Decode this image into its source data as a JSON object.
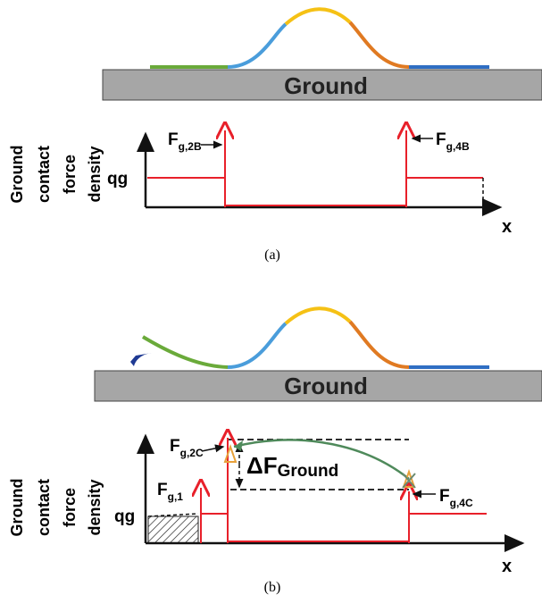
{
  "panels": [
    {
      "ground": "Ground",
      "ylabel": [
        "Ground",
        "contact",
        "force",
        "density"
      ],
      "q": "qg",
      "x": "x",
      "caption": "(a)",
      "forces": [
        {
          "main": "F",
          "sub": "g,2B"
        },
        {
          "main": "F",
          "sub": "g,4B"
        }
      ]
    },
    {
      "ground": "Ground",
      "ylabel": [
        "Ground",
        "contact",
        "force",
        "density"
      ],
      "q": "qg",
      "x": "x",
      "caption": "(b)",
      "forces": [
        {
          "main": "F",
          "sub": "g,2C"
        },
        {
          "main": "F",
          "sub": "g,1"
        },
        {
          "main": "F",
          "sub": "g,4C"
        }
      ],
      "delta": {
        "main": "ΔF",
        "sub": "Ground"
      }
    }
  ]
}
